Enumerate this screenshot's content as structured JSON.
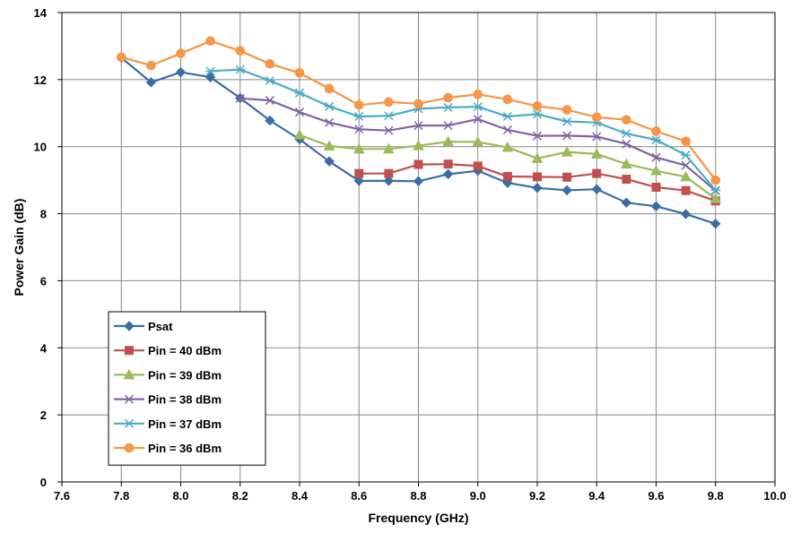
{
  "chart_data": {
    "type": "line",
    "title": "",
    "xlabel": "Frequency (GHz)",
    "ylabel": "Power Gain (dB)",
    "xlim": [
      7.6,
      10.0
    ],
    "ylim": [
      0,
      14
    ],
    "x_ticks": [
      "7.6",
      "7.8",
      "8.0",
      "8.2",
      "8.4",
      "8.6",
      "8.8",
      "9.0",
      "9.2",
      "9.4",
      "9.6",
      "9.8",
      "10.0"
    ],
    "y_ticks": [
      "0",
      "2",
      "4",
      "6",
      "8",
      "10",
      "12",
      "14"
    ],
    "grid": true,
    "legend_position": "lower-left",
    "series": [
      {
        "name": "Psat",
        "color": "#3a6ea5",
        "marker": "diamond",
        "x": [
          7.8,
          7.9,
          8.0,
          8.1,
          8.2,
          8.3,
          8.4,
          8.5,
          8.6,
          8.7,
          8.8,
          8.9,
          9.0,
          9.1,
          9.2,
          9.3,
          9.4,
          9.5,
          9.6,
          9.7,
          9.8
        ],
        "y": [
          12.65,
          11.92,
          12.22,
          12.07,
          11.45,
          10.78,
          10.22,
          9.56,
          8.98,
          8.98,
          8.97,
          9.18,
          9.28,
          8.92,
          8.77,
          8.7,
          8.73,
          8.33,
          8.22,
          7.99,
          7.7
        ]
      },
      {
        "name": "Pin = 40 dBm",
        "color": "#c0504d",
        "marker": "square",
        "x": [
          8.6,
          8.7,
          8.8,
          8.9,
          9.0,
          9.1,
          9.2,
          9.3,
          9.4,
          9.5,
          9.6,
          9.7,
          9.8
        ],
        "y": [
          9.2,
          9.2,
          9.47,
          9.48,
          9.42,
          9.11,
          9.1,
          9.09,
          9.2,
          9.03,
          8.79,
          8.69,
          8.38
        ]
      },
      {
        "name": "Pin = 39 dBm",
        "color": "#9bbb59",
        "marker": "triangle",
        "x": [
          8.4,
          8.5,
          8.6,
          8.7,
          8.8,
          8.9,
          9.0,
          9.1,
          9.2,
          9.3,
          9.4,
          9.5,
          9.6,
          9.7,
          9.8
        ],
        "y": [
          10.35,
          10.02,
          9.93,
          9.93,
          10.03,
          10.15,
          10.14,
          9.98,
          9.65,
          9.84,
          9.78,
          9.48,
          9.28,
          9.1,
          8.45
        ]
      },
      {
        "name": "Pin = 38 dBm",
        "color": "#8064a2",
        "marker": "x",
        "x": [
          8.2,
          8.3,
          8.4,
          8.5,
          8.6,
          8.7,
          8.8,
          8.9,
          9.0,
          9.1,
          9.2,
          9.3,
          9.4,
          9.5,
          9.6,
          9.7,
          9.8
        ],
        "y": [
          11.44,
          11.38,
          11.03,
          10.72,
          10.52,
          10.48,
          10.63,
          10.63,
          10.82,
          10.5,
          10.32,
          10.33,
          10.3,
          10.08,
          9.68,
          9.44,
          8.68
        ]
      },
      {
        "name": "Pin = 37 dBm",
        "color": "#4bacc6",
        "marker": "asterisk",
        "x": [
          8.1,
          8.2,
          8.3,
          8.4,
          8.5,
          8.6,
          8.7,
          8.8,
          8.9,
          9.0,
          9.1,
          9.2,
          9.3,
          9.4,
          9.5,
          9.6,
          9.7,
          9.8
        ],
        "y": [
          12.25,
          12.3,
          11.97,
          11.6,
          11.2,
          10.9,
          10.92,
          11.13,
          11.17,
          11.19,
          10.9,
          10.97,
          10.75,
          10.72,
          10.39,
          10.2,
          9.75,
          8.7
        ]
      },
      {
        "name": "Pin = 36 dBm",
        "color": "#f79646",
        "marker": "circle",
        "x": [
          7.8,
          7.9,
          8.0,
          8.1,
          8.2,
          8.3,
          8.4,
          8.5,
          8.6,
          8.7,
          8.8,
          8.9,
          9.0,
          9.1,
          9.2,
          9.3,
          9.4,
          9.5,
          9.6,
          9.7,
          9.8
        ],
        "y": [
          12.67,
          12.42,
          12.78,
          13.15,
          12.86,
          12.47,
          12.2,
          11.73,
          11.24,
          11.33,
          11.28,
          11.46,
          11.56,
          11.41,
          11.21,
          11.1,
          10.88,
          10.8,
          10.46,
          10.16,
          9.0
        ]
      }
    ]
  }
}
